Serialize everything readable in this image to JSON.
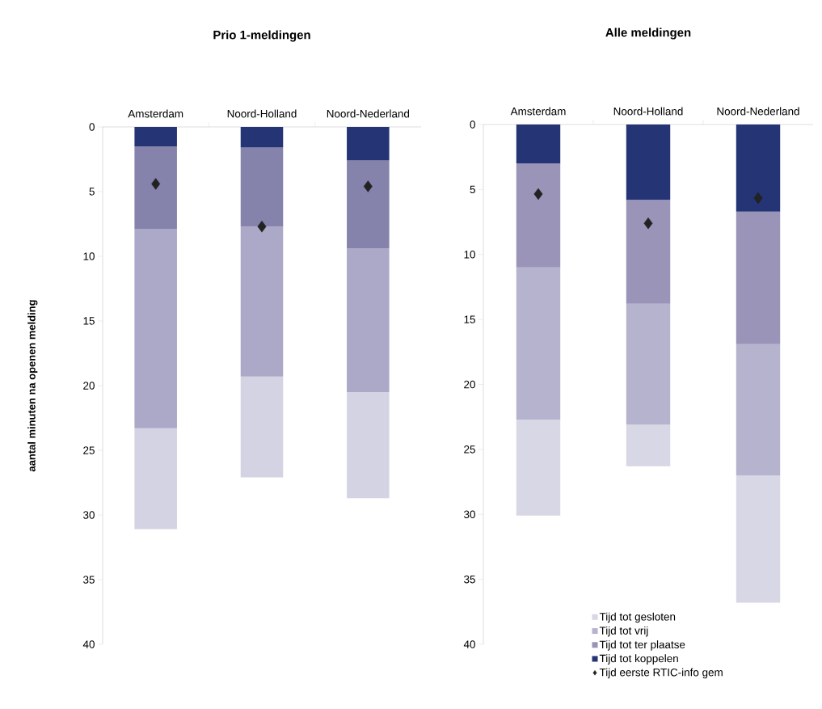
{
  "chart_data": [
    {
      "type": "bar",
      "title": "Prio 1-meldingen",
      "ylabel": "aantal minuten na openen melding",
      "categories": [
        "Amsterdam",
        "Noord-Holland",
        "Noord-Nederland"
      ],
      "stacked": true,
      "ylim": [
        40,
        0
      ],
      "yticks": [
        0,
        5,
        10,
        15,
        20,
        25,
        30,
        35,
        40
      ],
      "legend": false,
      "series": [
        {
          "color": "#253474",
          "values": [
            1.5,
            1.6,
            2.6
          ]
        },
        {
          "color": "#8582ab",
          "values": [
            6.4,
            6.1,
            6.8
          ]
        },
        {
          "color": "#aba8c8",
          "values": [
            15.4,
            11.6,
            11.1
          ]
        },
        {
          "color": "#d4d3e3",
          "values": [
            7.8,
            7.8,
            8.2
          ]
        },
        {
          "type": "scatter",
          "color": "#222222",
          "marker": "diamond",
          "x": [
            "Amsterdam",
            "Noord-Holland",
            "Noord-Nederland"
          ],
          "values": [
            4.4,
            7.7,
            4.6
          ]
        }
      ]
    },
    {
      "type": "bar",
      "title": "Alle meldingen",
      "categories": [
        "Amsterdam",
        "Noord-Holland",
        "Noord-Nederland"
      ],
      "stacked": true,
      "ylim": [
        40,
        0
      ],
      "yticks": [
        0,
        5,
        10,
        15,
        20,
        25,
        30,
        35,
        40
      ],
      "legend": "bottom right",
      "series": [
        {
          "name": "Tijd tot koppelen",
          "color": "#253474",
          "values": [
            3.0,
            5.8,
            6.7
          ]
        },
        {
          "name": "Tijd tot ter plaatse",
          "color": "#9994b8",
          "values": [
            8.0,
            8.0,
            10.2
          ]
        },
        {
          "name": "Tijd tot vrij",
          "color": "#b5b3cd",
          "values": [
            11.7,
            9.3,
            10.1
          ]
        },
        {
          "name": "Tijd tot gesloten",
          "color": "#d8d7e6",
          "values": [
            7.4,
            3.2,
            9.8
          ]
        },
        {
          "type": "scatter",
          "name": "Tijd eerste RTIC-info gem",
          "color": "#222222",
          "marker": "diamond",
          "x": [
            "Amsterdam",
            "Noord-Holland",
            "Noord-Nederland"
          ],
          "values": [
            5.35,
            7.6,
            5.66
          ]
        }
      ]
    }
  ]
}
